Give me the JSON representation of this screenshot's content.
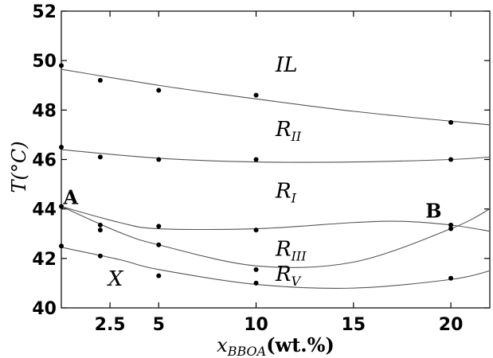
{
  "chart_data": {
    "type": "scatter",
    "title": "",
    "xlabel": "x_BBOA(wt.%)",
    "xlabel_parts": {
      "var": "x",
      "sub": "BBOA",
      "unit": "(wt.%)"
    },
    "ylabel": "T(°C)",
    "ylabel_parts": {
      "var": "T",
      "unit": "(°C)"
    },
    "xlim": [
      0,
      22
    ],
    "ylim": [
      40,
      52
    ],
    "xticks": [
      2.5,
      5,
      10,
      15,
      20
    ],
    "xtick_labels": [
      "2.5",
      "5",
      "10",
      "15",
      "20"
    ],
    "yticks": [
      40,
      42,
      44,
      46,
      48,
      50,
      52
    ],
    "ytick_labels": [
      "40",
      "42",
      "44",
      "46",
      "48",
      "50",
      "52"
    ],
    "grid": false,
    "series": [
      {
        "x": [
          0,
          2,
          5,
          10,
          20
        ],
        "y": [
          49.8,
          49.2,
          48.8,
          48.6,
          47.5
        ]
      },
      {
        "x": [
          0,
          2,
          5,
          10,
          20
        ],
        "y": [
          46.5,
          46.1,
          46.0,
          46.0,
          46.0
        ]
      },
      {
        "x": [
          0,
          2,
          5,
          10,
          20
        ],
        "y": [
          44.1,
          43.35,
          43.3,
          43.15,
          43.35
        ]
      },
      {
        "x": [
          2,
          5,
          10,
          20
        ],
        "y": [
          43.15,
          42.55,
          41.55,
          43.2
        ]
      },
      {
        "x": [
          0,
          2,
          5,
          10,
          20
        ],
        "y": [
          42.5,
          42.1,
          41.3,
          41.0,
          41.2
        ]
      }
    ],
    "curves": [
      {
        "x": [
          0,
          5,
          10,
          15,
          20,
          22
        ],
        "y": [
          49.65,
          49.0,
          48.45,
          47.95,
          47.55,
          47.4
        ]
      },
      {
        "x": [
          0,
          5,
          10,
          15,
          20,
          22
        ],
        "y": [
          46.4,
          46.05,
          45.9,
          45.9,
          46.0,
          46.1
        ]
      },
      {
        "x": [
          0,
          3,
          5,
          10,
          15,
          17.5,
          20,
          22
        ],
        "y": [
          44.1,
          43.45,
          43.2,
          43.2,
          43.45,
          43.5,
          43.35,
          43.1
        ]
      },
      {
        "x": [
          0,
          3,
          5,
          10,
          15,
          20,
          22
        ],
        "y": [
          44.1,
          43.05,
          42.55,
          41.7,
          41.85,
          43.2,
          44.0
        ]
      },
      {
        "x": [
          0,
          3,
          5,
          10,
          15,
          20,
          22
        ],
        "y": [
          42.45,
          41.95,
          41.55,
          40.95,
          40.8,
          41.15,
          41.5
        ]
      }
    ],
    "regions": [
      {
        "name": "IL",
        "sub": "",
        "x": 11,
        "y": 49.55
      },
      {
        "name": "R",
        "sub": "II",
        "x": 11,
        "y": 46.95
      },
      {
        "name": "R",
        "sub": "I",
        "x": 11,
        "y": 44.45
      },
      {
        "name": "R",
        "sub": "III",
        "x": 11,
        "y": 42.1
      },
      {
        "name": "R",
        "sub": "V",
        "x": 11,
        "y": 41.1
      },
      {
        "name": "X",
        "sub": "",
        "x": 2.4,
        "y": 40.9
      }
    ],
    "annotations": [
      {
        "text": "A",
        "x": 0.1,
        "y": 44.2
      },
      {
        "text": "B",
        "x": 18.7,
        "y": 43.65
      }
    ]
  }
}
